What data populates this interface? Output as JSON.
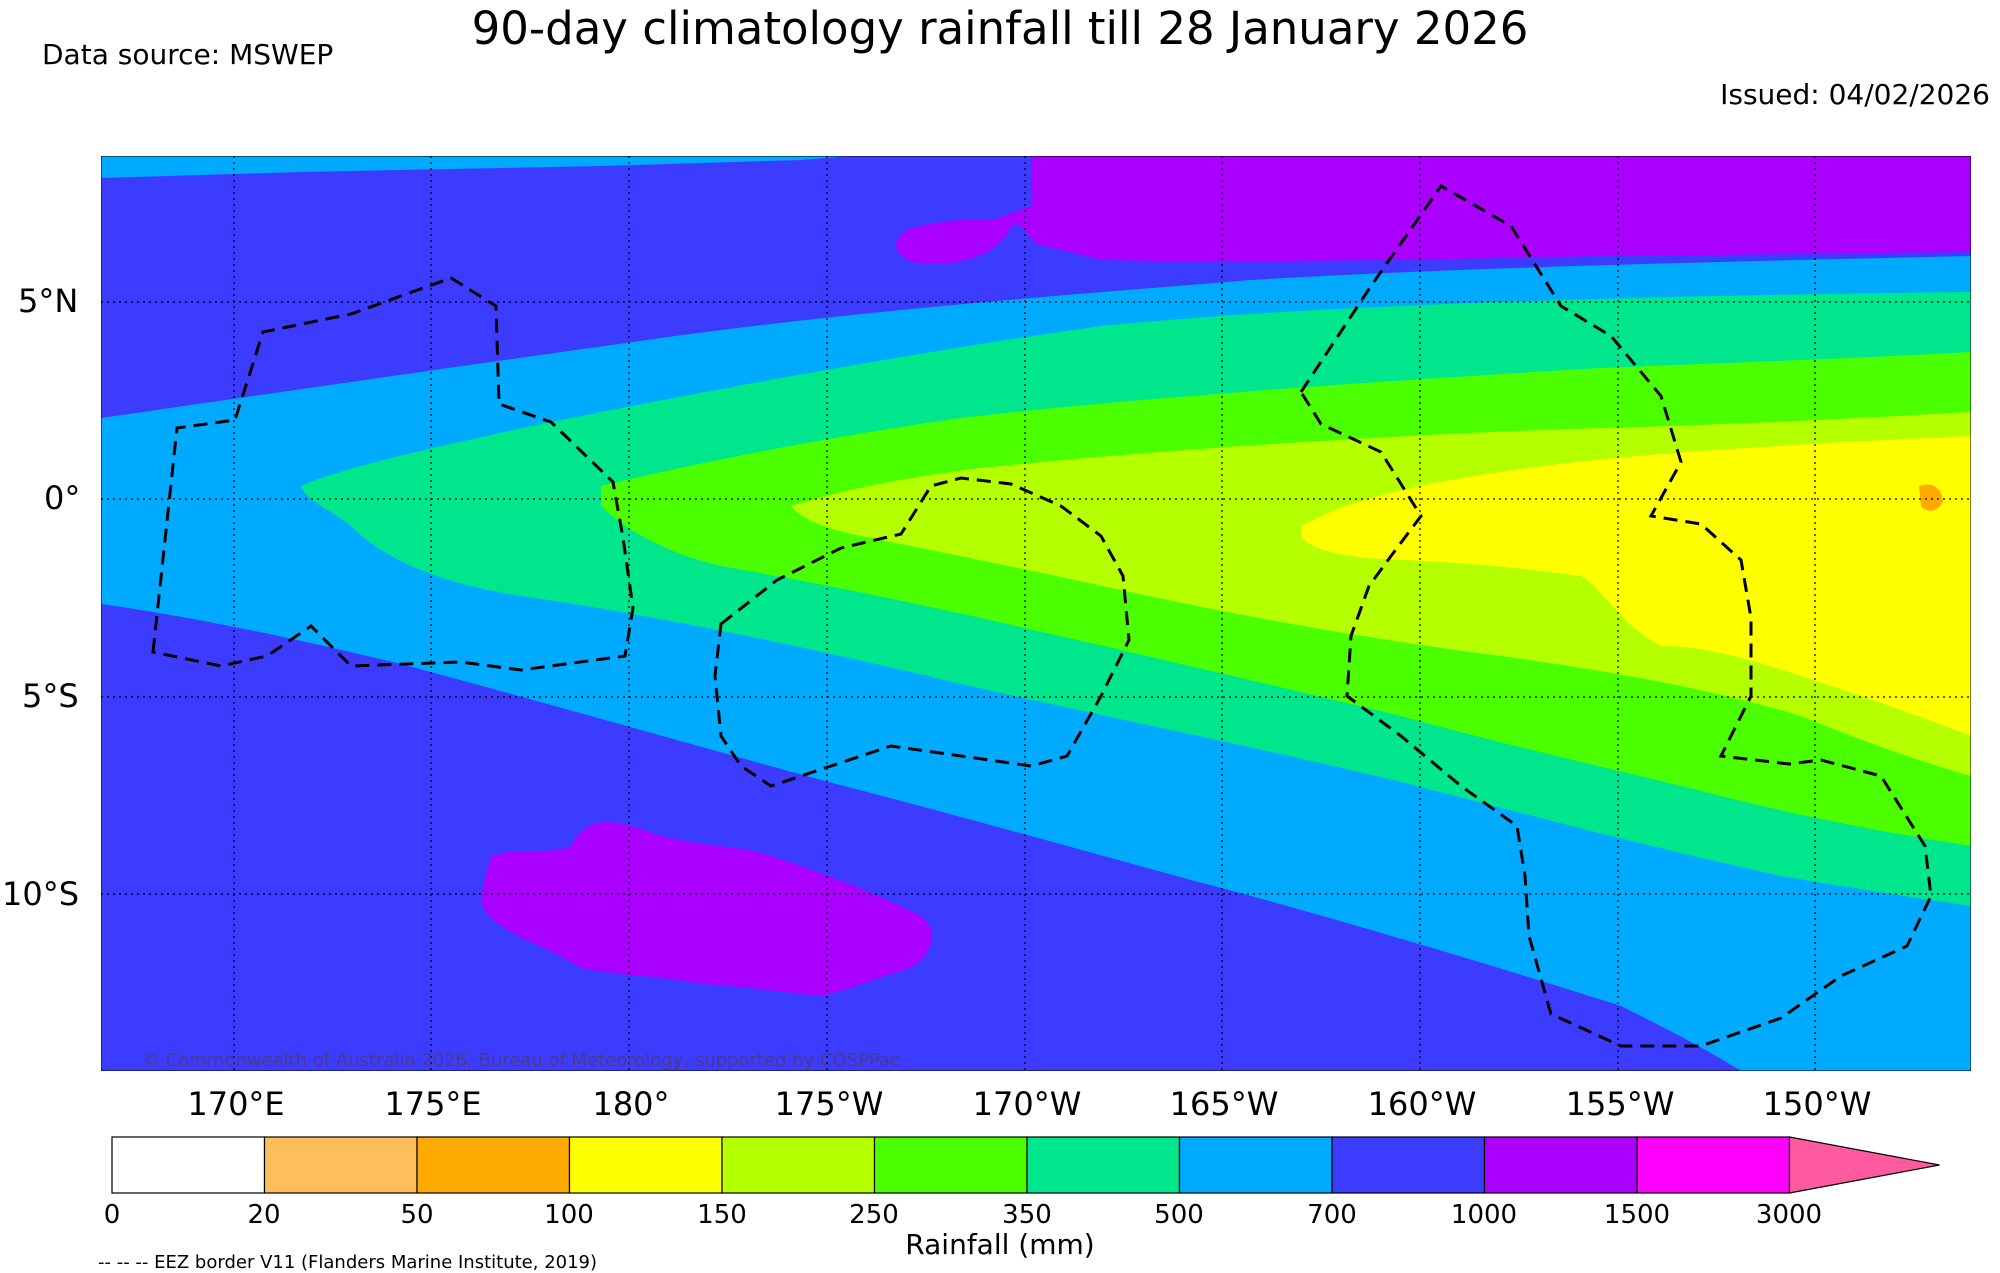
{
  "title": "90-day climatology rainfall till 28 January 2026",
  "data_source": "Data source: MSWEP",
  "issued": "Issued: 04/02/2026",
  "copyright": "© Commonwealth of Australia 2026, Bureau of Meteorology, supported by COSPPac",
  "latitude_labels": [
    "5°N",
    "0°",
    "5°S",
    "10°S"
  ],
  "longitude_labels": [
    "170°E",
    "175°E",
    "180°",
    "175°W",
    "170°W",
    "165°W",
    "160°W",
    "155°W",
    "150°W"
  ],
  "colorbar": {
    "title": "Rainfall (mm)",
    "tick_labels": [
      "0",
      "20",
      "50",
      "100",
      "150",
      "250",
      "350",
      "500",
      "700",
      "1000",
      "1500",
      "3000"
    ],
    "colors": [
      "#ffffff",
      "#ffbe5a",
      "#ffaa00",
      "#ffff00",
      "#b4ff00",
      "#4bff00",
      "#00e68c",
      "#00aaff",
      "#3c3cff",
      "#aa00ff",
      "#ff00ff",
      "#ff5aa0"
    ]
  },
  "legend_note": "-- -- -- EEZ border V11 (Flanders Marine Institute, 2019)"
}
